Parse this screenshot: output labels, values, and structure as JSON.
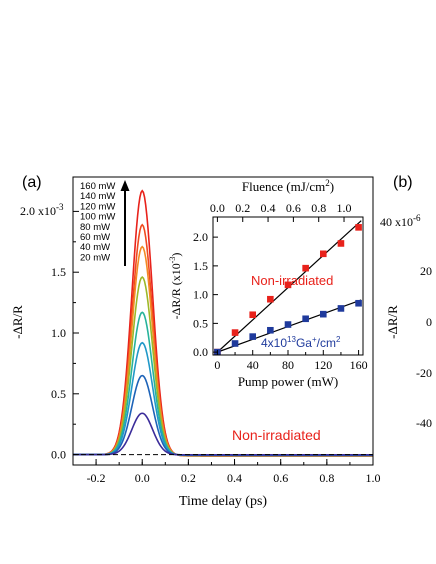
{
  "chart_data": [
    {
      "panel": "(a)",
      "type": "line",
      "xlabel": "Time delay (ps)",
      "ylabel": "-ΔR/R",
      "xlim": [
        -0.3,
        1.0
      ],
      "ylim": [
        -0.0001,
        0.0022
      ],
      "x_ticks": [
        "-0.2",
        "0.0",
        "0.2",
        "0.4",
        "0.6",
        "0.8",
        "1.0"
      ],
      "y_ticks": [
        "0.0",
        "0.5",
        "1.0",
        "1.5"
      ],
      "y_top_tick_prefix": "2.0 x10",
      "y_top_tick_exp": "-3",
      "annotation": "Non-irradiated",
      "annotation_color": "#e8221b",
      "arrow": true,
      "peak_time_ps": 0.0,
      "pulse_width_ps": 0.045,
      "series": [
        {
          "name": "160 mW",
          "peak": 0.00217,
          "color": "#e8221b"
        },
        {
          "name": "140 mW",
          "peak": 0.00189,
          "color": "#f04a1e"
        },
        {
          "name": "120 mW",
          "peak": 0.00171,
          "color": "#f38a24"
        },
        {
          "name": "100 mW",
          "peak": 0.00146,
          "color": "#9cb827"
        },
        {
          "name": "80 mW",
          "peak": 0.00117,
          "color": "#27b39b"
        },
        {
          "name": "60 mW",
          "peak": 0.00092,
          "color": "#2098c8"
        },
        {
          "name": "40 mW",
          "peak": 0.00065,
          "color": "#1d63b8"
        },
        {
          "name": "20 mW",
          "peak": 0.00034,
          "color": "#3b2c9a"
        }
      ]
    },
    {
      "panel": "inset",
      "type": "scatter",
      "xlabel": "Pump power (mW)",
      "ylabel_prefix": "-ΔR/R (x10",
      "ylabel_exp": "-3",
      "ylabel_suffix": ")",
      "top_xlabel_prefix": "Fluence (mJ/cm",
      "top_xlabel_exp": "2",
      "top_xlabel_suffix": ")",
      "xlim": [
        -5,
        165
      ],
      "ylim": [
        -0.05,
        2.35
      ],
      "x_ticks": [
        "0",
        "40",
        "80",
        "120",
        "160"
      ],
      "y_ticks": [
        "0.0",
        "0.5",
        "1.0",
        "1.5",
        "2.0"
      ],
      "top_ticks": [
        "0.0",
        "0.2",
        "0.4",
        "0.6",
        "0.8",
        "1.0"
      ],
      "label_red": "Non-irradiated",
      "label_blue_prefix": "4x10",
      "label_blue_exp1": "13",
      "label_blue_mid": "Ga",
      "label_blue_exp2": "+",
      "label_blue_mid2": "/cm",
      "label_blue_exp3": "2",
      "series": [
        {
          "color": "#e8221b",
          "x": [
            0,
            20,
            40,
            60,
            80,
            100,
            120,
            140,
            160
          ],
          "y": [
            0.0,
            0.34,
            0.65,
            0.92,
            1.17,
            1.46,
            1.71,
            1.89,
            2.17
          ]
        },
        {
          "color": "#1f3a9c",
          "x": [
            0,
            20,
            40,
            60,
            80,
            100,
            120,
            140,
            160
          ],
          "y": [
            0.0,
            0.15,
            0.27,
            0.38,
            0.48,
            0.58,
            0.66,
            0.76,
            0.85
          ]
        }
      ]
    },
    {
      "panel": "(b)",
      "type": "line",
      "ylabel": "-ΔR/R",
      "y_ticks": [
        "20",
        "0",
        "-20",
        "-40"
      ],
      "y_top_tick_prefix": "40 x10",
      "y_top_tick_exp": "-6",
      "partial_tick": "0"
    }
  ]
}
